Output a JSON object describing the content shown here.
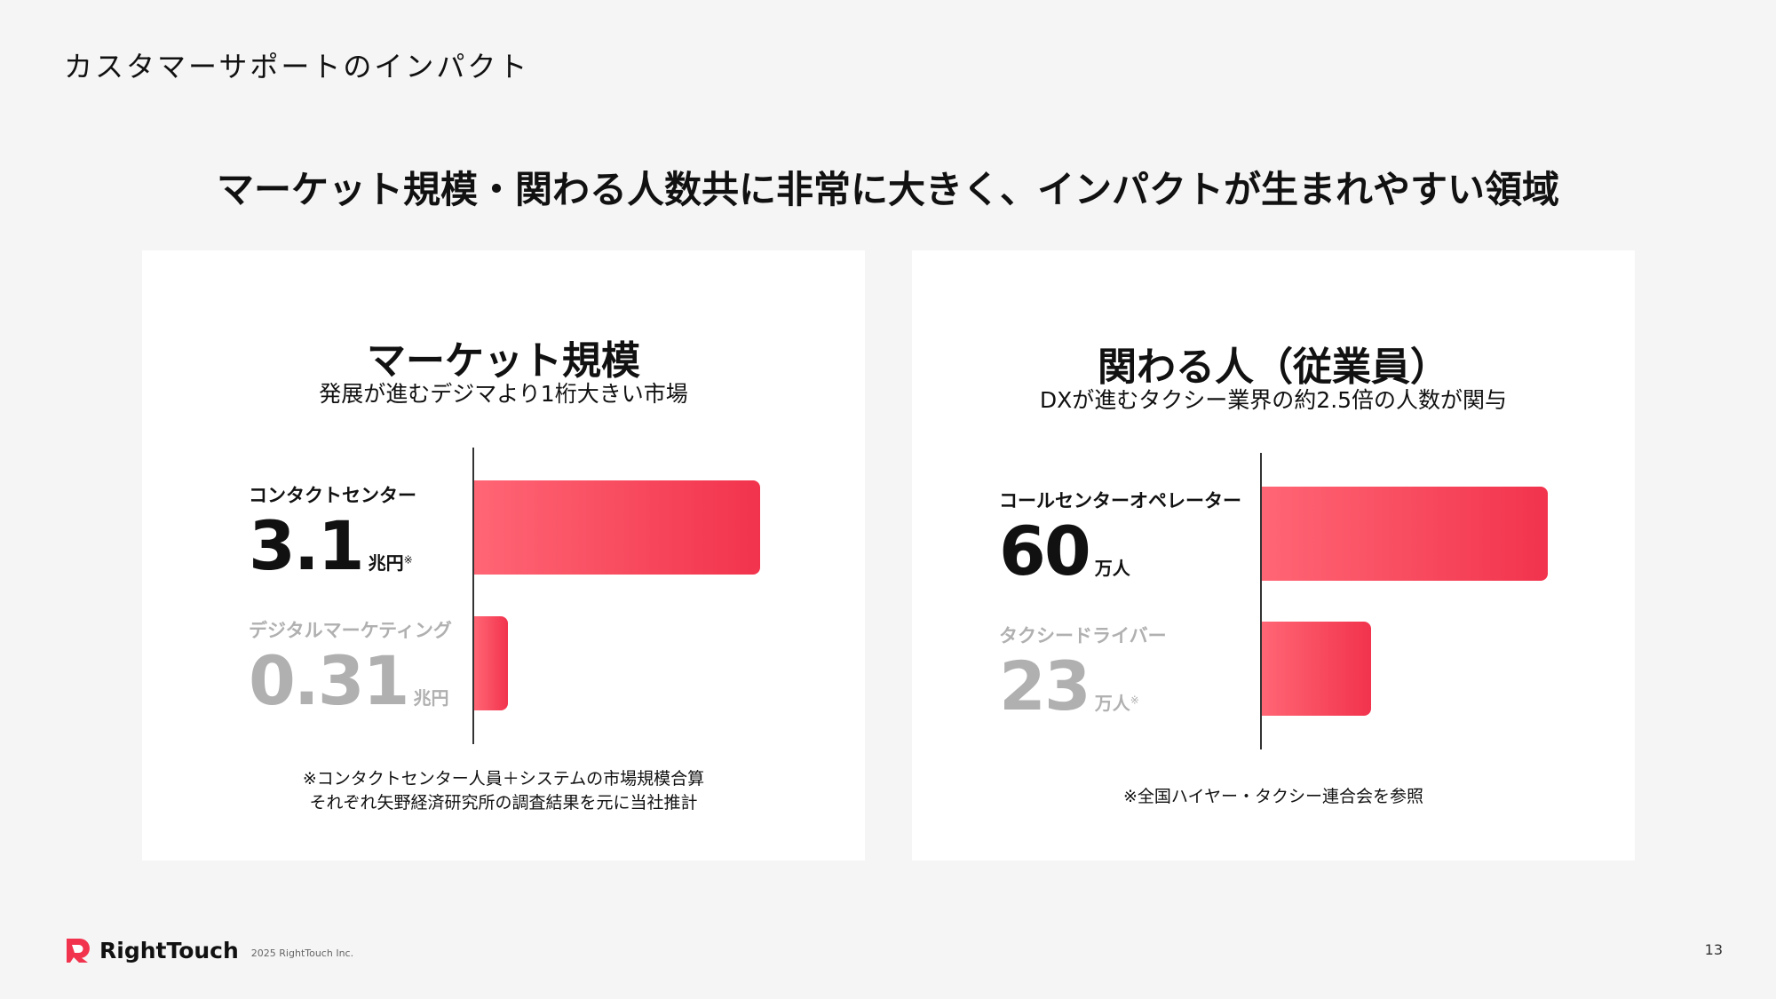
{
  "header": {
    "section_title": "カスタマーサポートのインパクト",
    "headline": "マーケット規模・関わる人数共に非常に大きく、インパクトが生まれやすい領域"
  },
  "colors": {
    "bar_start": "#ff6675",
    "bar_end": "#f2334d",
    "muted": "#b0b0b0"
  },
  "chart_data": [
    {
      "type": "bar",
      "orientation": "horizontal",
      "title": "マーケット規模",
      "subtitle": "発展が進むデジマより1桁大きい市場",
      "categories": [
        "コンタクトセンター",
        "デジタルマーケティング"
      ],
      "values": [
        3.1,
        0.31
      ],
      "value_labels": [
        "3.1",
        "0.31"
      ],
      "units": [
        "兆円",
        "兆円"
      ],
      "marks": [
        "※",
        ""
      ],
      "note": [
        "※コンタクトセンター人員＋システムの市場規模合算",
        "それぞれ矢野経済研究所の調査結果を元に当社推計"
      ]
    },
    {
      "type": "bar",
      "orientation": "horizontal",
      "title": "関わる人（従業員）",
      "subtitle": "DXが進むタクシー業界の約2.5倍の人数が関与",
      "categories": [
        "コールセンターオペレーター",
        "タクシードライバー"
      ],
      "values": [
        60,
        23
      ],
      "value_labels": [
        "60",
        "23"
      ],
      "units": [
        "万人",
        "万人"
      ],
      "marks": [
        "",
        "※"
      ],
      "note": [
        "※全国ハイヤー・タクシー連合会を参照"
      ]
    }
  ],
  "footer": {
    "brand": "RightTouch",
    "copyright": "2025 RightTouch Inc.",
    "page": "13"
  }
}
